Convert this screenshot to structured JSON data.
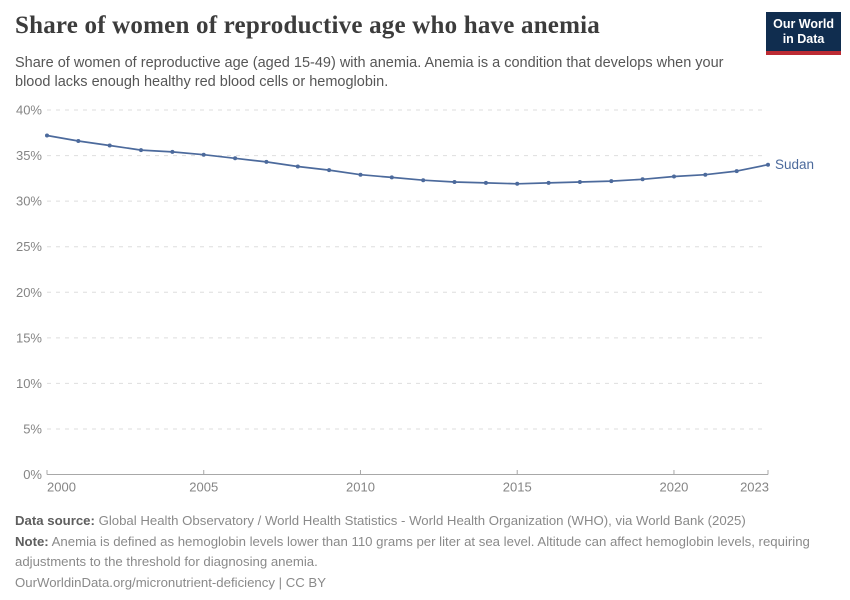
{
  "header": {
    "title": "Share of women of reproductive age who have anemia",
    "subtitle": "Share of women of reproductive age (aged 15-49) with anemia. Anemia is a condition that develops when your blood lacks enough healthy red blood cells or hemoglobin.",
    "logo": {
      "line1": "Our World",
      "line2": "in Data",
      "bg_color": "#102D4F",
      "bar_color": "#BC2B33"
    }
  },
  "chart_data": {
    "type": "line",
    "title": "Share of women of reproductive age who have anemia",
    "x": [
      2000,
      2001,
      2002,
      2003,
      2004,
      2005,
      2006,
      2007,
      2008,
      2009,
      2010,
      2011,
      2012,
      2013,
      2014,
      2015,
      2016,
      2017,
      2018,
      2019,
      2020,
      2021,
      2022,
      2023
    ],
    "series": [
      {
        "name": "Sudan",
        "color": "#4C6A9C",
        "values": [
          37.2,
          36.6,
          36.1,
          35.6,
          35.4,
          35.1,
          34.7,
          34.3,
          33.8,
          33.4,
          32.9,
          32.6,
          32.3,
          32.1,
          32.0,
          31.9,
          32.0,
          32.1,
          32.2,
          32.4,
          32.7,
          32.9,
          33.3,
          34.0
        ]
      }
    ],
    "end_label": "Sudan",
    "xlabel": "",
    "ylabel": "",
    "xlim": [
      2000,
      2023
    ],
    "ylim": [
      0,
      40
    ],
    "x_tick_labels": [
      "2000",
      "2005",
      "2010",
      "2015",
      "2020",
      "2023"
    ],
    "y_ticks": [
      0,
      5,
      10,
      15,
      20,
      25,
      30,
      35,
      40
    ],
    "y_tick_suffix": "%",
    "grid": "horizontal-dashed",
    "legend_position": "end-of-line",
    "colors": {
      "grid": "#dedede",
      "axis": "#a8a8a8",
      "tick_label": "#858585"
    }
  },
  "footer": {
    "data_source_label": "Data source:",
    "data_source_text": "Global Health Observatory / World Health Statistics - World Health Organization (WHO), via World Bank (2025)",
    "note_label": "Note:",
    "note_text": "Anemia is defined as hemoglobin levels lower than 110 grams per liter at sea level. Altitude can affect hemoglobin levels, requiring adjustments to the threshold for diagnosing anemia.",
    "url_line": "OurWorldinData.org/micronutrient-deficiency | CC BY"
  }
}
